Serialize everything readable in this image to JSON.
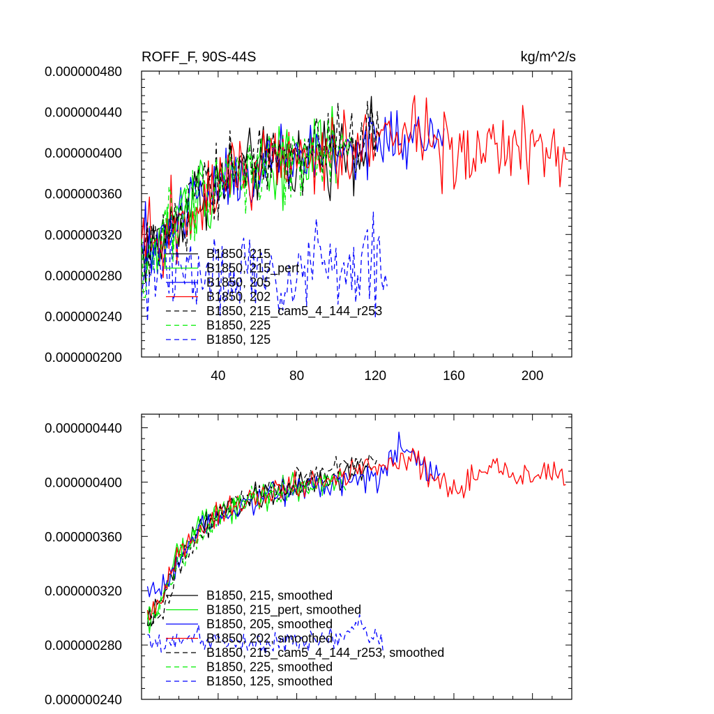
{
  "chart_data": [
    {
      "type": "line",
      "title": "ROFF_F, 90S-44S",
      "units": "kg/m^2/s",
      "xlim": [
        1,
        220
      ],
      "ylim": [
        2e-07,
        4.8e-07
      ],
      "xticks": [
        40,
        80,
        120,
        160,
        200
      ],
      "xtick_labels": [
        "40",
        "80",
        "120",
        "160",
        "200"
      ],
      "yticks": [
        2e-07,
        2.4e-07,
        2.8e-07,
        3.2e-07,
        3.6e-07,
        4e-07,
        4.4e-07,
        4.8e-07
      ],
      "ytick_labels": [
        "0.000000200",
        "0.000000240",
        "0.000000280",
        "0.000000320",
        "0.000000360",
        "0.000000400",
        "0.000000440",
        "0.000000480"
      ],
      "legend": "bottom-left inside",
      "series": [
        {
          "name": "B1850, 215",
          "color": "#000000",
          "dash": "solid",
          "length": 120,
          "anchors": [
            [
              1,
              3e-07
            ],
            [
              10,
              3.12e-07
            ],
            [
              20,
              3.35e-07
            ],
            [
              30,
              3.62e-07
            ],
            [
              45,
              3.78e-07
            ],
            [
              60,
              3.86e-07
            ],
            [
              80,
              3.95e-07
            ],
            [
              100,
              4.02e-07
            ],
            [
              120,
              4.12e-07
            ]
          ],
          "noise": 1.8e-08
        },
        {
          "name": "B1850, 215_pert",
          "color": "#00ee00",
          "dash": "solid",
          "length": 100,
          "anchors": [
            [
              1,
              3e-07
            ],
            [
              10,
              3.1e-07
            ],
            [
              20,
              3.34e-07
            ],
            [
              30,
              3.6e-07
            ],
            [
              45,
              3.78e-07
            ],
            [
              60,
              3.88e-07
            ],
            [
              80,
              3.95e-07
            ],
            [
              100,
              4.02e-07
            ]
          ],
          "noise": 1.9e-08
        },
        {
          "name": "B1850, 205",
          "color": "#0000ff",
          "dash": "solid",
          "length": 155,
          "anchors": [
            [
              1,
              3.02e-07
            ],
            [
              10,
              3.15e-07
            ],
            [
              20,
              3.38e-07
            ],
            [
              30,
              3.62e-07
            ],
            [
              45,
              3.78e-07
            ],
            [
              60,
              3.87e-07
            ],
            [
              80,
              3.95e-07
            ],
            [
              100,
              4.02e-07
            ],
            [
              120,
              4.08e-07
            ],
            [
              135,
              4.15e-07
            ],
            [
              155,
              4.08e-07
            ]
          ],
          "noise": 1.9e-08
        },
        {
          "name": "B1850, 202",
          "color": "#ff0000",
          "dash": "solid",
          "length": 218,
          "anchors": [
            [
              1,
              3e-07
            ],
            [
              10,
              3.12e-07
            ],
            [
              20,
              3.35e-07
            ],
            [
              30,
              3.6e-07
            ],
            [
              45,
              3.77e-07
            ],
            [
              60,
              3.86e-07
            ],
            [
              80,
              3.95e-07
            ],
            [
              100,
              4.02e-07
            ],
            [
              120,
              4.12e-07
            ],
            [
              140,
              4.15e-07
            ],
            [
              160,
              4.02e-07
            ],
            [
              180,
              4.05e-07
            ],
            [
              200,
              4.02e-07
            ],
            [
              218,
              4.02e-07
            ]
          ],
          "noise": 1.9e-08
        },
        {
          "name": "B1850, 215_cam5_4_144_r253",
          "color": "#000000",
          "dash": "dashed",
          "length": 122,
          "anchors": [
            [
              1,
              3e-07
            ],
            [
              10,
              3.08e-07
            ],
            [
              20,
              3.32e-07
            ],
            [
              30,
              3.6e-07
            ],
            [
              45,
              3.8e-07
            ],
            [
              60,
              3.9e-07
            ],
            [
              80,
              3.98e-07
            ],
            [
              100,
              4.08e-07
            ],
            [
              122,
              4.15e-07
            ]
          ],
          "noise": 1.9e-08
        },
        {
          "name": "B1850, 225",
          "color": "#00ee00",
          "dash": "dashed",
          "length": 108,
          "anchors": [
            [
              1,
              3e-07
            ],
            [
              10,
              3.1e-07
            ],
            [
              20,
              3.33e-07
            ],
            [
              30,
              3.6e-07
            ],
            [
              45,
              3.78e-07
            ],
            [
              60,
              3.88e-07
            ],
            [
              80,
              3.95e-07
            ],
            [
              100,
              4.02e-07
            ],
            [
              108,
              4.05e-07
            ]
          ],
          "noise": 1.9e-08
        },
        {
          "name": "B1850, 125",
          "color": "#0000ff",
          "dash": "dashed",
          "length": 126,
          "anchors": [
            [
              1,
              2.82e-07
            ],
            [
              30,
              2.86e-07
            ],
            [
              60,
              2.84e-07
            ],
            [
              80,
              2.86e-07
            ],
            [
              100,
              2.87e-07
            ],
            [
              126,
              2.88e-07
            ]
          ],
          "noise": 2.2e-08
        }
      ]
    },
    {
      "type": "line",
      "title": "",
      "xlim": [
        1,
        220
      ],
      "ylim": [
        2.4e-07,
        4.5e-07
      ],
      "xticks": [
        40,
        80,
        120,
        160,
        200
      ],
      "xtick_labels": [],
      "yticks": [
        2.4e-07,
        2.8e-07,
        3.2e-07,
        3.6e-07,
        4e-07,
        4.4e-07
      ],
      "ytick_labels": [
        "0.000000240",
        "0.000000280",
        "0.000000320",
        "0.000000360",
        "0.000000400",
        "0.000000440"
      ],
      "legend": "bottom-left inside",
      "series": [
        {
          "name": "B1850, 215, smoothed",
          "color": "#000000",
          "dash": "solid",
          "length": 118,
          "anchors": [
            [
              4,
              3e-07
            ],
            [
              10,
              3.06e-07
            ],
            [
              20,
              3.45e-07
            ],
            [
              30,
              3.66e-07
            ],
            [
              45,
              3.8e-07
            ],
            [
              60,
              3.88e-07
            ],
            [
              80,
              3.96e-07
            ],
            [
              100,
              4.02e-07
            ],
            [
              118,
              4.12e-07
            ]
          ],
          "noise": 5e-09
        },
        {
          "name": "B1850, 215_pert, smoothed",
          "color": "#00ee00",
          "dash": "solid",
          "length": 100,
          "anchors": [
            [
              4,
              3e-07
            ],
            [
              10,
              3.12e-07
            ],
            [
              20,
              3.46e-07
            ],
            [
              30,
              3.68e-07
            ],
            [
              45,
              3.82e-07
            ],
            [
              60,
              3.9e-07
            ],
            [
              80,
              3.96e-07
            ],
            [
              100,
              4e-07
            ]
          ],
          "noise": 5e-09
        },
        {
          "name": "B1850, 205, smoothed",
          "color": "#0000ff",
          "dash": "solid",
          "length": 153,
          "anchors": [
            [
              4,
              3.18e-07
            ],
            [
              10,
              3.22e-07
            ],
            [
              20,
              3.42e-07
            ],
            [
              30,
              3.66e-07
            ],
            [
              45,
              3.8e-07
            ],
            [
              60,
              3.88e-07
            ],
            [
              80,
              3.96e-07
            ],
            [
              100,
              4.02e-07
            ],
            [
              120,
              4.04e-07
            ],
            [
              132,
              4.25e-07
            ],
            [
              142,
              4.12e-07
            ],
            [
              153,
              4.05e-07
            ]
          ],
          "noise": 5e-09
        },
        {
          "name": "B1850, 202, smoothed",
          "color": "#ff0000",
          "dash": "solid",
          "length": 217,
          "anchors": [
            [
              4,
              3e-07
            ],
            [
              10,
              3.1e-07
            ],
            [
              20,
              3.48e-07
            ],
            [
              30,
              3.66e-07
            ],
            [
              45,
              3.8e-07
            ],
            [
              60,
              3.88e-07
            ],
            [
              80,
              3.96e-07
            ],
            [
              100,
              4.02e-07
            ],
            [
              120,
              4.12e-07
            ],
            [
              140,
              4.18e-07
            ],
            [
              160,
              3.9e-07
            ],
            [
              170,
              4.02e-07
            ],
            [
              180,
              4.12e-07
            ],
            [
              195,
              4.02e-07
            ],
            [
              210,
              4.08e-07
            ],
            [
              217,
              4.02e-07
            ]
          ],
          "noise": 5e-09
        },
        {
          "name": "B1850, 215_cam5_4_144_r253, smoothed",
          "color": "#000000",
          "dash": "dashed",
          "length": 121,
          "anchors": [
            [
              4,
              2.98e-07
            ],
            [
              10,
              2.98e-07
            ],
            [
              20,
              3.32e-07
            ],
            [
              30,
              3.62e-07
            ],
            [
              45,
              3.82e-07
            ],
            [
              60,
              3.9e-07
            ],
            [
              80,
              3.98e-07
            ],
            [
              100,
              4.1e-07
            ],
            [
              121,
              4.18e-07
            ]
          ],
          "noise": 5e-09
        },
        {
          "name": "B1850, 225, smoothed",
          "color": "#00ee00",
          "dash": "dashed",
          "length": 105,
          "anchors": [
            [
              4,
              3.02e-07
            ],
            [
              10,
              3.08e-07
            ],
            [
              20,
              3.4e-07
            ],
            [
              30,
              3.62e-07
            ],
            [
              45,
              3.8e-07
            ],
            [
              60,
              3.88e-07
            ],
            [
              80,
              3.96e-07
            ],
            [
              105,
              4.02e-07
            ]
          ],
          "noise": 5e-09
        },
        {
          "name": "B1850, 125, smoothed",
          "color": "#0000ff",
          "dash": "dashed",
          "length": 124,
          "anchors": [
            [
              4,
              2.82e-07
            ],
            [
              30,
              2.84e-07
            ],
            [
              60,
              2.8e-07
            ],
            [
              80,
              2.82e-07
            ],
            [
              100,
              2.84e-07
            ],
            [
              112,
              2.95e-07
            ],
            [
              124,
              2.8e-07
            ]
          ],
          "noise": 4e-09
        }
      ]
    }
  ]
}
